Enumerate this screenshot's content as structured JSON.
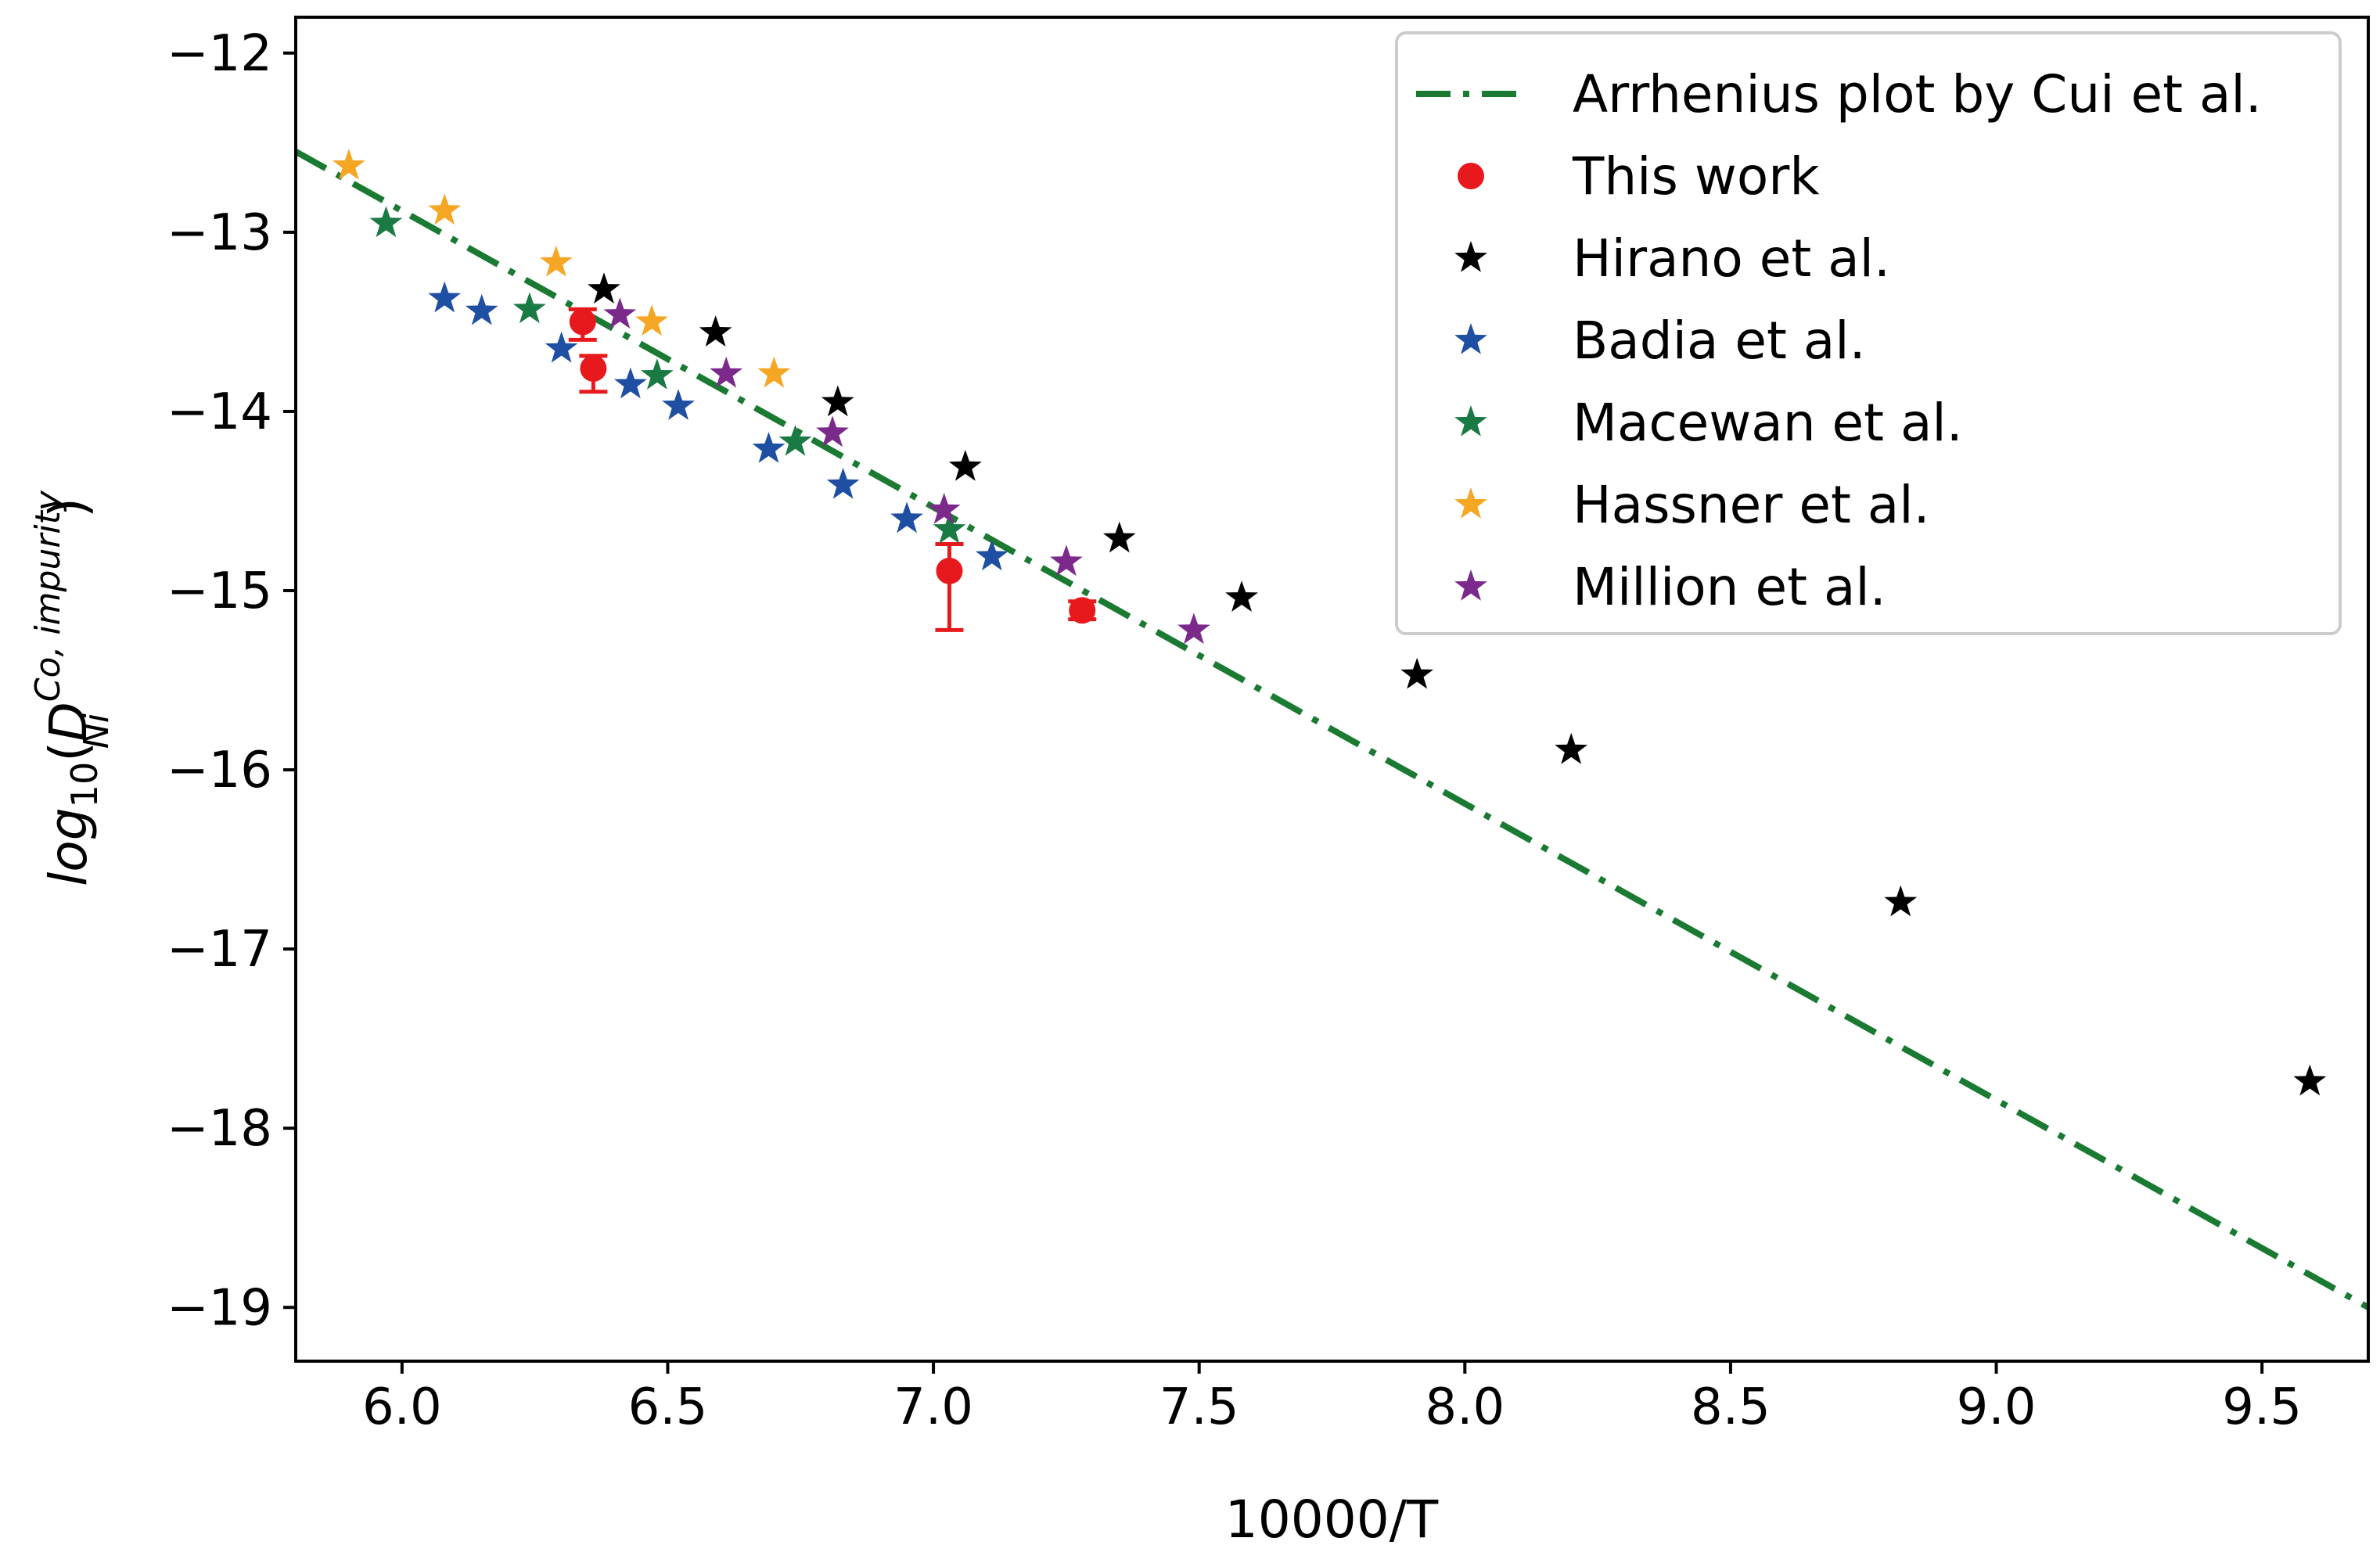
{
  "chart_data": {
    "type": "scatter",
    "title": "",
    "xlabel": "10000/T",
    "ylabel": {
      "prefix": "log",
      "sub": "10",
      "open": "(",
      "var": "D",
      "var_sup": "Co, impurity",
      "var_sub": "Ni",
      "close": ")"
    },
    "xlim": [
      5.8,
      9.7
    ],
    "ylim": [
      -19.3,
      -11.8
    ],
    "xticks": [
      6.0,
      6.5,
      7.0,
      7.5,
      8.0,
      8.5,
      9.0,
      9.5
    ],
    "yticks": [
      -12,
      -13,
      -14,
      -15,
      -16,
      -17,
      -18,
      -19
    ],
    "xtick_labels": [
      "6.0",
      "6.5",
      "7.0",
      "7.5",
      "8.0",
      "8.5",
      "9.0",
      "9.5"
    ],
    "ytick_labels": [
      "−12",
      "−13",
      "−14",
      "−15",
      "−16",
      "−17",
      "−18",
      "−19"
    ],
    "grid": false,
    "legend_position": "top-right",
    "line": {
      "name": "Arrhenius plot by Cui et al.",
      "color": "#1a7a32",
      "style": "dash-dot",
      "x": [
        5.8,
        9.7
      ],
      "y": [
        -12.55,
        -19.0
      ]
    },
    "series": [
      {
        "name": "This work",
        "marker": "circle",
        "color": "#e8191c",
        "points": [
          {
            "x": 6.34,
            "y": -13.5,
            "err_low": 0.1,
            "err_high": 0.07
          },
          {
            "x": 6.36,
            "y": -13.76,
            "err_low": 0.13,
            "err_high": 0.07
          },
          {
            "x": 7.03,
            "y": -14.89,
            "err_low": 0.33,
            "err_high": 0.15
          },
          {
            "x": 7.28,
            "y": -15.11,
            "err_low": 0.05,
            "err_high": 0.05
          }
        ]
      },
      {
        "name": "Hirano et al.",
        "marker": "star",
        "color": "#000000",
        "points": [
          {
            "x": 6.38,
            "y": -13.32
          },
          {
            "x": 6.59,
            "y": -13.56
          },
          {
            "x": 6.82,
            "y": -13.95
          },
          {
            "x": 7.06,
            "y": -14.31
          },
          {
            "x": 7.35,
            "y": -14.71
          },
          {
            "x": 7.58,
            "y": -15.04
          },
          {
            "x": 7.91,
            "y": -15.47
          },
          {
            "x": 8.2,
            "y": -15.89
          },
          {
            "x": 8.82,
            "y": -16.74
          },
          {
            "x": 9.59,
            "y": -17.74
          }
        ]
      },
      {
        "name": "Badia et al.",
        "marker": "star",
        "color": "#1f4fa3",
        "points": [
          {
            "x": 6.08,
            "y": -13.37
          },
          {
            "x": 6.15,
            "y": -13.44
          },
          {
            "x": 6.3,
            "y": -13.65
          },
          {
            "x": 6.43,
            "y": -13.85
          },
          {
            "x": 6.52,
            "y": -13.97
          },
          {
            "x": 6.69,
            "y": -14.21
          },
          {
            "x": 6.83,
            "y": -14.41
          },
          {
            "x": 6.95,
            "y": -14.6
          },
          {
            "x": 7.11,
            "y": -14.81
          }
        ]
      },
      {
        "name": "Macewan et al.",
        "marker": "star",
        "color": "#1a7a44",
        "points": [
          {
            "x": 5.97,
            "y": -12.95
          },
          {
            "x": 6.24,
            "y": -13.43
          },
          {
            "x": 6.48,
            "y": -13.8
          },
          {
            "x": 6.74,
            "y": -14.17
          },
          {
            "x": 7.03,
            "y": -14.66
          }
        ]
      },
      {
        "name": "Hassner et al.",
        "marker": "star",
        "color": "#f5a623",
        "points": [
          {
            "x": 5.9,
            "y": -12.63
          },
          {
            "x": 6.08,
            "y": -12.88
          },
          {
            "x": 6.29,
            "y": -13.17
          },
          {
            "x": 6.47,
            "y": -13.5
          },
          {
            "x": 6.7,
            "y": -13.79
          }
        ]
      },
      {
        "name": "Million et al.",
        "marker": "star",
        "color": "#7b2a8c",
        "points": [
          {
            "x": 6.41,
            "y": -13.46
          },
          {
            "x": 6.61,
            "y": -13.79
          },
          {
            "x": 6.81,
            "y": -14.12
          },
          {
            "x": 7.02,
            "y": -14.55
          },
          {
            "x": 7.25,
            "y": -14.84
          },
          {
            "x": 7.49,
            "y": -15.22
          }
        ]
      }
    ]
  }
}
